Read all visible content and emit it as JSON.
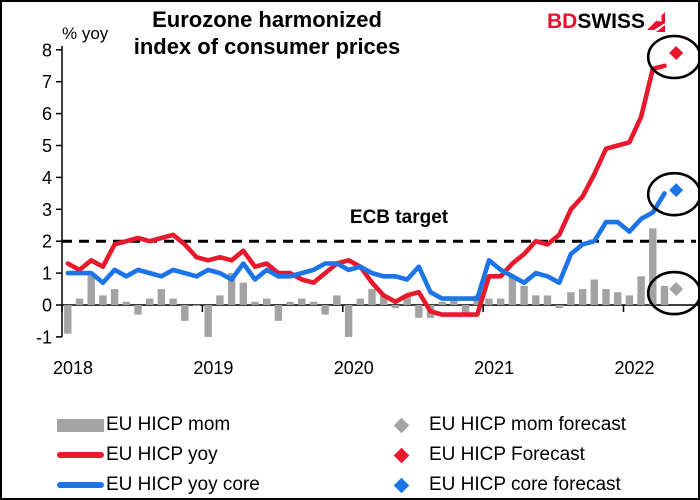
{
  "logo": {
    "part1": "BD",
    "part2": "SWISS"
  },
  "chart_data": {
    "type": "combo",
    "title": "Eurozone harmonized\nindex of consumer prices",
    "unit_label": "% yoy",
    "ecb_target": {
      "label": "ECB target",
      "value": 2
    },
    "ylim": [
      -1,
      8
    ],
    "y_ticks": [
      -1,
      0,
      1,
      2,
      3,
      4,
      5,
      6,
      7,
      8
    ],
    "x_tick_labels": [
      "2018",
      "2019",
      "2020",
      "2021",
      "2022"
    ],
    "grid": false,
    "legend_position": "bottom",
    "months": [
      "2018-01",
      "2018-02",
      "2018-03",
      "2018-04",
      "2018-05",
      "2018-06",
      "2018-07",
      "2018-08",
      "2018-09",
      "2018-10",
      "2018-11",
      "2018-12",
      "2019-01",
      "2019-02",
      "2019-03",
      "2019-04",
      "2019-05",
      "2019-06",
      "2019-07",
      "2019-08",
      "2019-09",
      "2019-10",
      "2019-11",
      "2019-12",
      "2020-01",
      "2020-02",
      "2020-03",
      "2020-04",
      "2020-05",
      "2020-06",
      "2020-07",
      "2020-08",
      "2020-09",
      "2020-10",
      "2020-11",
      "2020-12",
      "2021-01",
      "2021-02",
      "2021-03",
      "2021-04",
      "2021-05",
      "2021-06",
      "2021-07",
      "2021-08",
      "2021-09",
      "2021-10",
      "2021-11",
      "2021-12",
      "2022-01",
      "2022-02",
      "2022-03",
      "2022-04",
      "2022-05"
    ],
    "series": [
      {
        "name": "EU HICP mom",
        "type": "bar",
        "color": "#a3a3a3",
        "values": [
          -0.9,
          0.2,
          1.0,
          0.3,
          0.5,
          0.1,
          -0.3,
          0.2,
          0.5,
          0.2,
          -0.5,
          0.0,
          -1.0,
          0.3,
          1.0,
          0.7,
          0.1,
          0.2,
          -0.5,
          0.1,
          0.2,
          0.1,
          -0.3,
          0.3,
          -1.0,
          0.2,
          0.5,
          0.3,
          -0.1,
          0.3,
          -0.4,
          -0.4,
          0.1,
          0.2,
          -0.3,
          0.3,
          0.2,
          0.2,
          0.9,
          0.6,
          0.3,
          0.3,
          -0.1,
          0.4,
          0.5,
          0.8,
          0.5,
          0.4,
          0.3,
          0.9,
          2.4,
          0.6,
          null
        ]
      },
      {
        "name": "EU HICP yoy",
        "type": "line",
        "color": "#e8192c",
        "values": [
          1.3,
          1.1,
          1.4,
          1.2,
          1.9,
          2.0,
          2.1,
          2.0,
          2.1,
          2.2,
          1.9,
          1.5,
          1.4,
          1.5,
          1.4,
          1.7,
          1.2,
          1.3,
          1.0,
          1.0,
          0.8,
          0.7,
          1.0,
          1.3,
          1.4,
          1.2,
          0.7,
          0.3,
          0.1,
          0.3,
          0.4,
          -0.2,
          -0.3,
          -0.3,
          -0.3,
          -0.3,
          0.9,
          0.9,
          1.3,
          1.6,
          2.0,
          1.9,
          2.2,
          3.0,
          3.4,
          4.1,
          4.9,
          5.0,
          5.1,
          5.9,
          7.4,
          7.5,
          null
        ]
      },
      {
        "name": "EU HICP yoy core",
        "type": "line",
        "color": "#1b74e8",
        "values": [
          1.0,
          1.0,
          1.0,
          0.7,
          1.1,
          0.9,
          1.1,
          1.0,
          0.9,
          1.1,
          1.0,
          0.9,
          1.1,
          1.0,
          0.8,
          1.3,
          0.8,
          1.1,
          0.9,
          0.9,
          1.0,
          1.1,
          1.3,
          1.3,
          1.1,
          1.2,
          1.0,
          0.9,
          0.9,
          0.8,
          1.2,
          0.4,
          0.2,
          0.2,
          0.2,
          0.2,
          1.4,
          1.1,
          0.9,
          0.7,
          1.0,
          0.9,
          0.7,
          1.6,
          1.9,
          2.0,
          2.6,
          2.6,
          2.3,
          2.7,
          2.9,
          3.5,
          null
        ]
      }
    ],
    "forecasts": [
      {
        "name": "EU HICP mom forecast",
        "color": "#a3a3a3",
        "month": "2022-05",
        "value": 0.5
      },
      {
        "name": "EU HICP Forecast",
        "color": "#e8192c",
        "month": "2022-05",
        "value": 7.9
      },
      {
        "name": "EU HICP core forecast",
        "color": "#1b74e8",
        "month": "2022-05",
        "value": 3.6
      }
    ]
  },
  "legend": {
    "left": [
      {
        "marker": "bar",
        "color": "#a3a3a3",
        "label": "EU HICP mom"
      },
      {
        "marker": "line",
        "color": "#e8192c",
        "label": "EU HICP yoy"
      },
      {
        "marker": "line",
        "color": "#1b74e8",
        "label": "EU HICP yoy core"
      }
    ],
    "right": [
      {
        "marker": "diamond",
        "color": "#a3a3a3",
        "label": "EU HICP mom forecast"
      },
      {
        "marker": "diamond",
        "color": "#e8192c",
        "label": "EU HICP Forecast"
      },
      {
        "marker": "diamond",
        "color": "#1b74e8",
        "label": "EU HICP core forecast"
      }
    ]
  }
}
